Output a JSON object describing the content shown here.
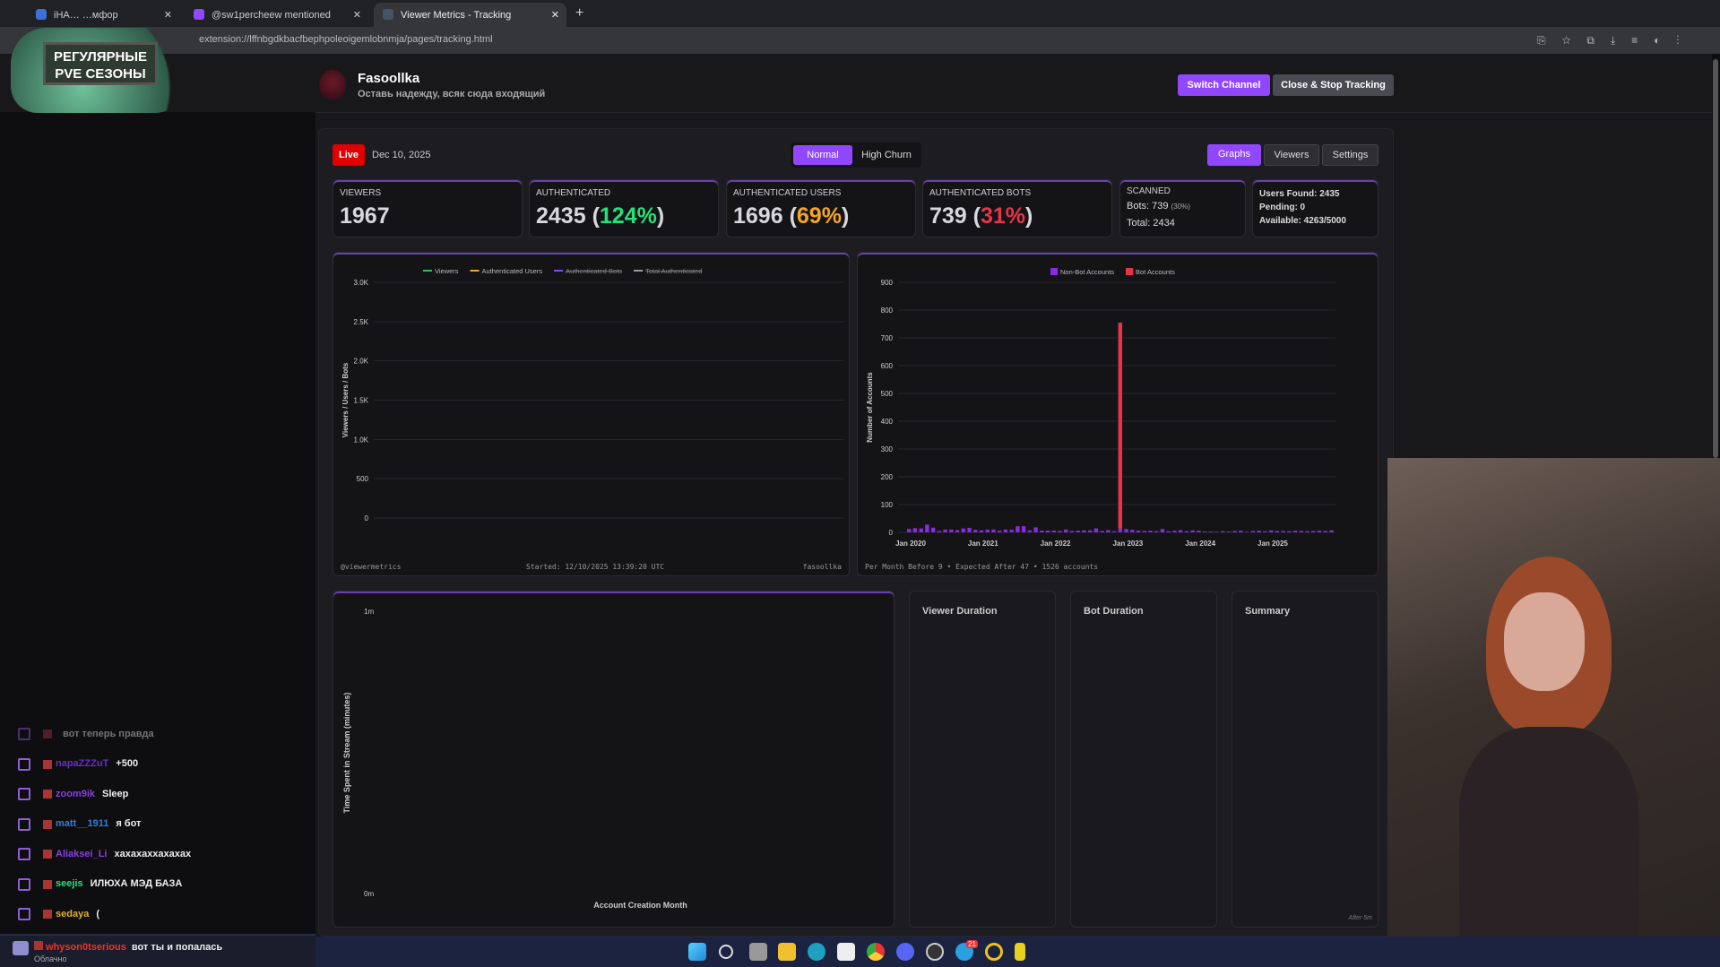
{
  "browser": {
    "tabs": [
      {
        "label": "iHA…   …мфор"
      },
      {
        "label": "@sw1percheew mentioned"
      },
      {
        "label": "Viewer Metrics - Tracking",
        "active": true
      }
    ],
    "new_tab": "+",
    "url": "extension://lffnbgdkbacfbephpoleoigemlobnmja/pages/tracking.html"
  },
  "overlay_logo": {
    "text": "РЕГУЛЯРНЫЕ PVE СЕЗОНЫ"
  },
  "channel": {
    "name": "Fasoollka",
    "tagline": "Оставь надежду, всяк сюда входящий"
  },
  "header_buttons": {
    "switch": "Switch Channel",
    "close": "Close & Stop Tracking"
  },
  "status": {
    "live": "Live",
    "date": "Dec 10, 2025"
  },
  "mode": {
    "normal": "Normal",
    "high_churn": "High Churn",
    "selected": "Normal"
  },
  "views": {
    "graphs": "Graphs",
    "viewers": "Viewers",
    "settings": "Settings",
    "selected": "Graphs"
  },
  "stats": {
    "viewers": {
      "label": "Viewers",
      "value": "1967"
    },
    "authenticated": {
      "label": "Authenticated",
      "value": "2435",
      "pct": "124%"
    },
    "auth_users": {
      "label": "Authenticated Users",
      "value": "1696",
      "pct": "69%"
    },
    "auth_bots": {
      "label": "Authenticated Bots",
      "value": "739",
      "pct": "31%"
    },
    "scanned": {
      "label": "Scanned",
      "bots": "Bots: 739",
      "bots_pct": "(30%)",
      "total": "Total: 2434"
    },
    "queue": {
      "found": "Users Found: 2435",
      "pending": "Pending: 0",
      "available": "Available: 4263/5000"
    }
  },
  "colors": {
    "accent": "#9147ff",
    "green": "#22e27a",
    "orange": "#f5a623",
    "red": "#e8344a",
    "live": "#e00000"
  },
  "chart_data": [
    {
      "type": "line",
      "title": "",
      "ylabel": "Viewers / Users / Bots",
      "ylim": [
        0,
        3000
      ],
      "yticks": [
        "0",
        "500",
        "1.0K",
        "1.5K",
        "2.0K",
        "2.5K",
        "3.0K"
      ],
      "legend": [
        {
          "name": "Viewers",
          "color": "#22c55e",
          "hidden": false
        },
        {
          "name": "Authenticated Users",
          "color": "#f5a623",
          "hidden": false
        },
        {
          "name": "Authenticated Bots",
          "color": "#7c4dff",
          "hidden": true
        },
        {
          "name": "Total Authenticated",
          "color": "#9a9a9a",
          "hidden": true
        }
      ],
      "legend_position": "top",
      "series": [],
      "footer": {
        "left": "@viewermetrics",
        "center": "Started: 12/10/2025 13:39:20 UTC",
        "right": "fasoollka"
      }
    },
    {
      "type": "bar",
      "stacked": true,
      "ylabel": "Number of Accounts",
      "ylim": [
        0,
        900
      ],
      "yticks": [
        "0",
        "100",
        "200",
        "300",
        "400",
        "500",
        "600",
        "700",
        "800",
        "900"
      ],
      "xticks": [
        "Jan 2020",
        "Jan 2021",
        "Jan 2022",
        "Jan 2023",
        "Jan 2024",
        "Jan 2025"
      ],
      "x_start": "2020-01",
      "x_end": "2025-11",
      "legend_position": "top",
      "series": [
        {
          "name": "Non-Bot Accounts",
          "color": "#8a2be2",
          "values": [
            12,
            15,
            14,
            28,
            17,
            5,
            10,
            10,
            8,
            14,
            16,
            9,
            7,
            10,
            10,
            6,
            10,
            9,
            22,
            22,
            7,
            18,
            6,
            6,
            6,
            5,
            10,
            5,
            6,
            7,
            7,
            14,
            5,
            8,
            4,
            14,
            12,
            9,
            6,
            5,
            6,
            4,
            12,
            4,
            6,
            8,
            4,
            7,
            6,
            3,
            3,
            2,
            4,
            3,
            5,
            6,
            2,
            5,
            6,
            4,
            7,
            5,
            5,
            4,
            6,
            5,
            4,
            5,
            6,
            5,
            7
          ]
        },
        {
          "name": "Bot Accounts",
          "color": "#e8344a",
          "values": [
            0,
            0,
            0,
            0,
            0,
            0,
            0,
            0,
            0,
            0,
            0,
            0,
            0,
            0,
            0,
            0,
            0,
            0,
            0,
            0,
            0,
            0,
            0,
            0,
            0,
            0,
            0,
            0,
            0,
            0,
            0,
            0,
            0,
            0,
            0,
            741,
            0,
            0,
            0,
            0,
            0,
            0,
            0,
            0,
            0,
            0,
            0,
            0,
            0,
            0,
            0,
            0,
            0,
            0,
            0,
            0,
            0,
            0,
            0,
            0,
            0,
            0,
            0,
            0,
            0,
            0,
            0,
            0,
            0,
            0,
            0
          ]
        }
      ],
      "footer": "Per Month Before 9 • Expected After 47 • 1526 accounts"
    },
    {
      "type": "scatter",
      "ylabel": "Time Spent in Stream (minutes)",
      "xlabel": "Account Creation Month",
      "yticks": [
        "0m",
        "1m"
      ],
      "series": []
    }
  ],
  "panels": {
    "viewer_duration": "Viewer Duration",
    "bot_duration": "Bot Duration",
    "summary": "Summary",
    "summary_note": "After 5m"
  },
  "chat": {
    "messages": [
      {
        "user": "",
        "text": "вот теперь правда",
        "color": "#3a2a8a"
      },
      {
        "user": "napaZZZuT",
        "text": "+500",
        "color": "#6a2fc0"
      },
      {
        "user": "zoom9ik",
        "text": "Sleep",
        "color": "#8a3ee0"
      },
      {
        "user": "matt__1911",
        "text": "я бот",
        "color": "#2f7fe0"
      },
      {
        "user": "Aliaksei_Li",
        "text": "хахахаххахахах",
        "color": "#8a3ee0"
      },
      {
        "user": "seejis",
        "text": "ИЛЮХА МЭД БАЗА",
        "color": "#22e27a"
      },
      {
        "user": "sedaya",
        "text": "(",
        "color": "#e0b030"
      }
    ],
    "alert": {
      "user": "whyson0tserious",
      "text": "вот ты и попалась",
      "sub": "Облачно",
      "color": "#e8342a"
    }
  },
  "taskbar": {
    "telegram_badge": "21"
  }
}
